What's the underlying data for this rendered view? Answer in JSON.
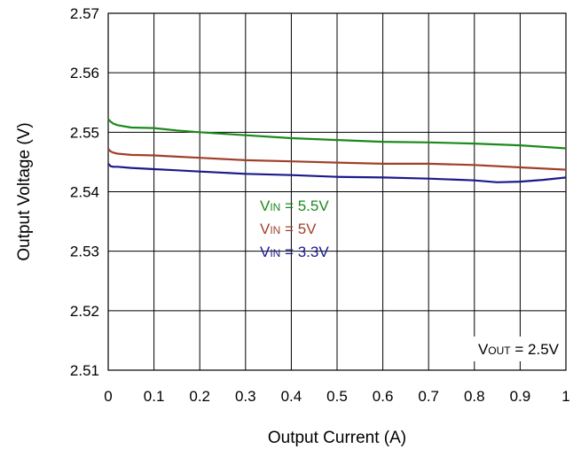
{
  "chart_data": {
    "type": "line",
    "xlabel": "Output Current (A)",
    "ylabel": "Output Voltage (V)",
    "xlim": [
      0,
      1
    ],
    "ylim": [
      2.51,
      2.57
    ],
    "x_ticks": [
      "0",
      "0.1",
      "0.2",
      "0.3",
      "0.4",
      "0.5",
      "0.6",
      "0.7",
      "0.8",
      "0.9",
      "1"
    ],
    "y_ticks": [
      "2.51",
      "2.52",
      "2.53",
      "2.54",
      "2.55",
      "2.56",
      "2.57"
    ],
    "grid": true,
    "series": [
      {
        "name": "VIN = 5.5V",
        "label": {
          "prefix": "V",
          "sub": "IN",
          "rest": " = 5.5V"
        },
        "color": "#1a8a1a",
        "x": [
          0,
          0.005,
          0.01,
          0.02,
          0.05,
          0.1,
          0.15,
          0.2,
          0.3,
          0.4,
          0.5,
          0.6,
          0.7,
          0.8,
          0.9,
          1.0
        ],
        "y": [
          2.5522,
          2.5518,
          2.5515,
          2.5512,
          2.5508,
          2.5507,
          2.5503,
          2.55,
          2.5495,
          2.549,
          2.5487,
          2.5484,
          2.5483,
          2.5481,
          2.5478,
          2.5473
        ]
      },
      {
        "name": "VIN = 5V",
        "label": {
          "prefix": "V",
          "sub": "IN",
          "rest": " = 5V"
        },
        "color": "#a0402a",
        "x": [
          0,
          0.005,
          0.01,
          0.02,
          0.05,
          0.1,
          0.15,
          0.2,
          0.3,
          0.4,
          0.5,
          0.6,
          0.7,
          0.8,
          0.9,
          1.0
        ],
        "y": [
          2.5472,
          2.5468,
          2.5466,
          2.5464,
          2.5462,
          2.5461,
          2.5459,
          2.5457,
          2.5453,
          2.5451,
          2.5449,
          2.5447,
          2.5447,
          2.5445,
          2.5441,
          2.5437
        ]
      },
      {
        "name": "VIN = 3.3V",
        "label": {
          "prefix": "V",
          "sub": "IN",
          "rest": " = 3.3V"
        },
        "color": "#1a1a8a",
        "x": [
          0,
          0.005,
          0.01,
          0.02,
          0.05,
          0.1,
          0.15,
          0.2,
          0.3,
          0.4,
          0.5,
          0.6,
          0.7,
          0.8,
          0.85,
          0.9,
          0.95,
          1.0
        ],
        "y": [
          2.5447,
          2.5443,
          2.5442,
          2.5442,
          2.544,
          2.5438,
          2.5436,
          2.5434,
          2.543,
          2.5428,
          2.5425,
          2.5424,
          2.5422,
          2.5419,
          2.5416,
          2.5417,
          2.542,
          2.5424
        ]
      }
    ],
    "annotation": {
      "prefix": "V",
      "sub": "OUT",
      "rest": " = 2.5V"
    }
  }
}
